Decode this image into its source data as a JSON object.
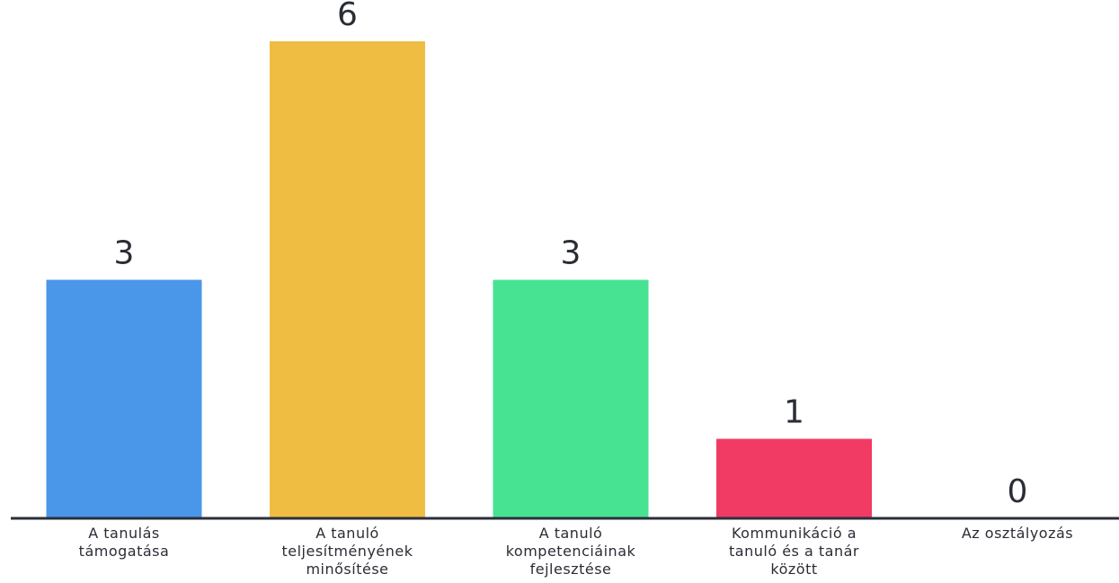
{
  "chart_data": {
    "type": "bar",
    "categories": [
      [
        "A tanulás",
        "támogatása"
      ],
      [
        "A tanuló",
        "teljesítményének",
        "minősítése"
      ],
      [
        "A tanuló",
        "kompetenciáinak",
        "fejlesztése"
      ],
      [
        "Kommunikáció a",
        "tanuló és a tanár",
        "között"
      ],
      [
        "Az osztályozás"
      ]
    ],
    "values": [
      3,
      6,
      3,
      1,
      0
    ],
    "value_labels": [
      "3",
      "6",
      "3",
      "1",
      "0"
    ],
    "colors": [
      "#4a97ea",
      "#f0bd43",
      "#47e393",
      "#f13a64",
      "#4a97ea"
    ],
    "axis_color": "#2b2f3a",
    "title": "",
    "xlabel": "",
    "ylabel": "",
    "ylim": [
      0,
      6
    ],
    "grid": false,
    "legend": "none"
  }
}
